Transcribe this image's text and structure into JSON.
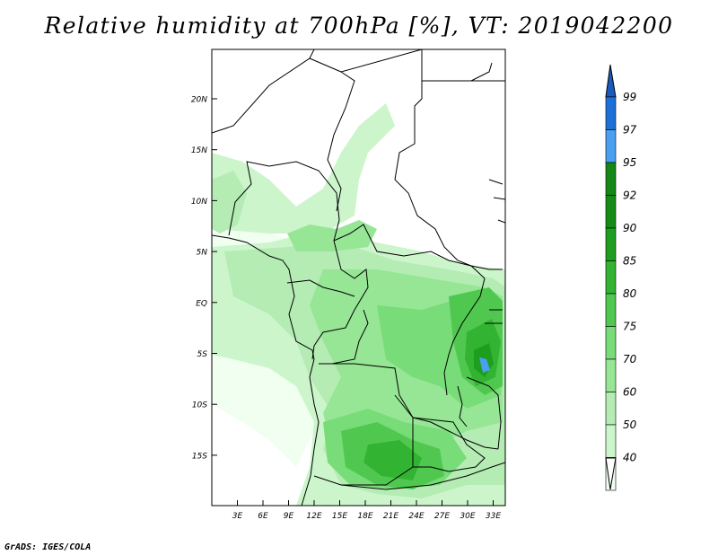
{
  "title": "Relative humidity at 700hPa [%], VT: 2019042200",
  "credit": "GrADS: IGES/COLA",
  "colors": {
    "frame": "#000000",
    "c40": "#f0fff0",
    "c50": "#ccf5cc",
    "c60": "#b4ecb4",
    "c70": "#96e696",
    "c75": "#78dc78",
    "c80": "#50c850",
    "c85": "#32b432",
    "c90": "#1e9e1e",
    "c92": "#168c16",
    "c95": "#148714",
    "c97": "#4a9ff0",
    "c99": "#1f6fd8",
    "ctop": "#1a5aba"
  },
  "map": {
    "lon_labels": [
      "3E",
      "6E",
      "9E",
      "12E",
      "15E",
      "18E",
      "21E",
      "24E",
      "27E",
      "30E",
      "33E"
    ],
    "lat_labels": [
      "20N",
      "15N",
      "10N",
      "5N",
      "EQ",
      "5S",
      "10S",
      "15S"
    ]
  },
  "colorbar": {
    "labels": [
      "99",
      "97",
      "95",
      "92",
      "90",
      "85",
      "80",
      "75",
      "70",
      "60",
      "50",
      "40"
    ]
  }
}
